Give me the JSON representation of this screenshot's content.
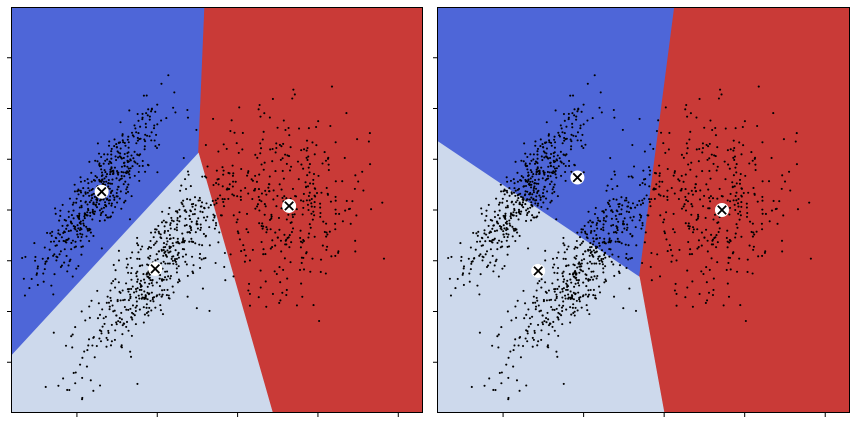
{
  "chart_data": [
    {
      "type": "scatter",
      "title": "",
      "xlabel": "",
      "ylabel": "",
      "grid": false,
      "legend": "none",
      "x_tick_labels_shown": false,
      "y_tick_labels_shown": false,
      "regions": [
        {
          "cluster": 0,
          "color": "#4e66d8",
          "polygon": [
            [
              0.0,
              1.0
            ],
            [
              0.47,
              1.0
            ],
            [
              0.455,
              0.64
            ],
            [
              0.0,
              0.14
            ]
          ]
        },
        {
          "cluster": 1,
          "color": "#c93a37",
          "polygon": [
            [
              0.47,
              1.0
            ],
            [
              1.0,
              1.0
            ],
            [
              1.0,
              0.0
            ],
            [
              0.635,
              0.0
            ],
            [
              0.455,
              0.64
            ]
          ]
        },
        {
          "cluster": 2,
          "color": "#cdd9ec",
          "polygon": [
            [
              0.0,
              0.14
            ],
            [
              0.455,
              0.64
            ],
            [
              0.635,
              0.0
            ],
            [
              0.0,
              0.0
            ]
          ]
        }
      ],
      "centroids": [
        {
          "cluster": 0,
          "x": 0.22,
          "y": 0.545
        },
        {
          "cluster": 1,
          "x": 0.675,
          "y": 0.51
        },
        {
          "cluster": 2,
          "x": 0.35,
          "y": 0.355
        }
      ],
      "point_clusters": [
        {
          "label": "elongated-upper",
          "cx": 0.22,
          "cy": 0.545,
          "sx": 0.075,
          "sy": 0.1,
          "rho": 0.86,
          "n": 520
        },
        {
          "label": "elongated-lower",
          "cx": 0.35,
          "cy": 0.355,
          "sx": 0.085,
          "sy": 0.115,
          "rho": 0.85,
          "n": 520
        },
        {
          "label": "round",
          "cx": 0.665,
          "cy": 0.52,
          "sx": 0.105,
          "sy": 0.11,
          "rho": 0.0,
          "n": 400
        }
      ],
      "marker_color": "#000000"
    },
    {
      "type": "scatter",
      "title": "",
      "xlabel": "",
      "ylabel": "",
      "grid": false,
      "legend": "none",
      "x_tick_labels_shown": false,
      "y_tick_labels_shown": false,
      "regions": [
        {
          "cluster": 0,
          "color": "#4e66d8",
          "polygon": [
            [
              0.0,
              1.0
            ],
            [
              0.575,
              1.0
            ],
            [
              0.49,
              0.335
            ],
            [
              0.0,
              0.67
            ]
          ]
        },
        {
          "cluster": 1,
          "color": "#c93a37",
          "polygon": [
            [
              0.575,
              1.0
            ],
            [
              1.0,
              1.0
            ],
            [
              1.0,
              0.0
            ],
            [
              0.55,
              0.0
            ],
            [
              0.49,
              0.335
            ]
          ]
        },
        {
          "cluster": 2,
          "color": "#cdd9ec",
          "polygon": [
            [
              0.0,
              0.67
            ],
            [
              0.49,
              0.335
            ],
            [
              0.55,
              0.0
            ],
            [
              0.0,
              0.0
            ]
          ]
        }
      ],
      "centroids": [
        {
          "cluster": 0,
          "x": 0.34,
          "y": 0.58
        },
        {
          "cluster": 1,
          "x": 0.69,
          "y": 0.5
        },
        {
          "cluster": 2,
          "x": 0.245,
          "y": 0.35
        }
      ],
      "point_clusters": [
        {
          "label": "elongated-upper",
          "cx": 0.22,
          "cy": 0.545,
          "sx": 0.075,
          "sy": 0.1,
          "rho": 0.86,
          "n": 520
        },
        {
          "label": "elongated-lower",
          "cx": 0.35,
          "cy": 0.355,
          "sx": 0.085,
          "sy": 0.115,
          "rho": 0.85,
          "n": 520
        },
        {
          "label": "round",
          "cx": 0.665,
          "cy": 0.52,
          "sx": 0.105,
          "sy": 0.11,
          "rho": 0.0,
          "n": 400
        }
      ],
      "marker_color": "#000000"
    }
  ]
}
